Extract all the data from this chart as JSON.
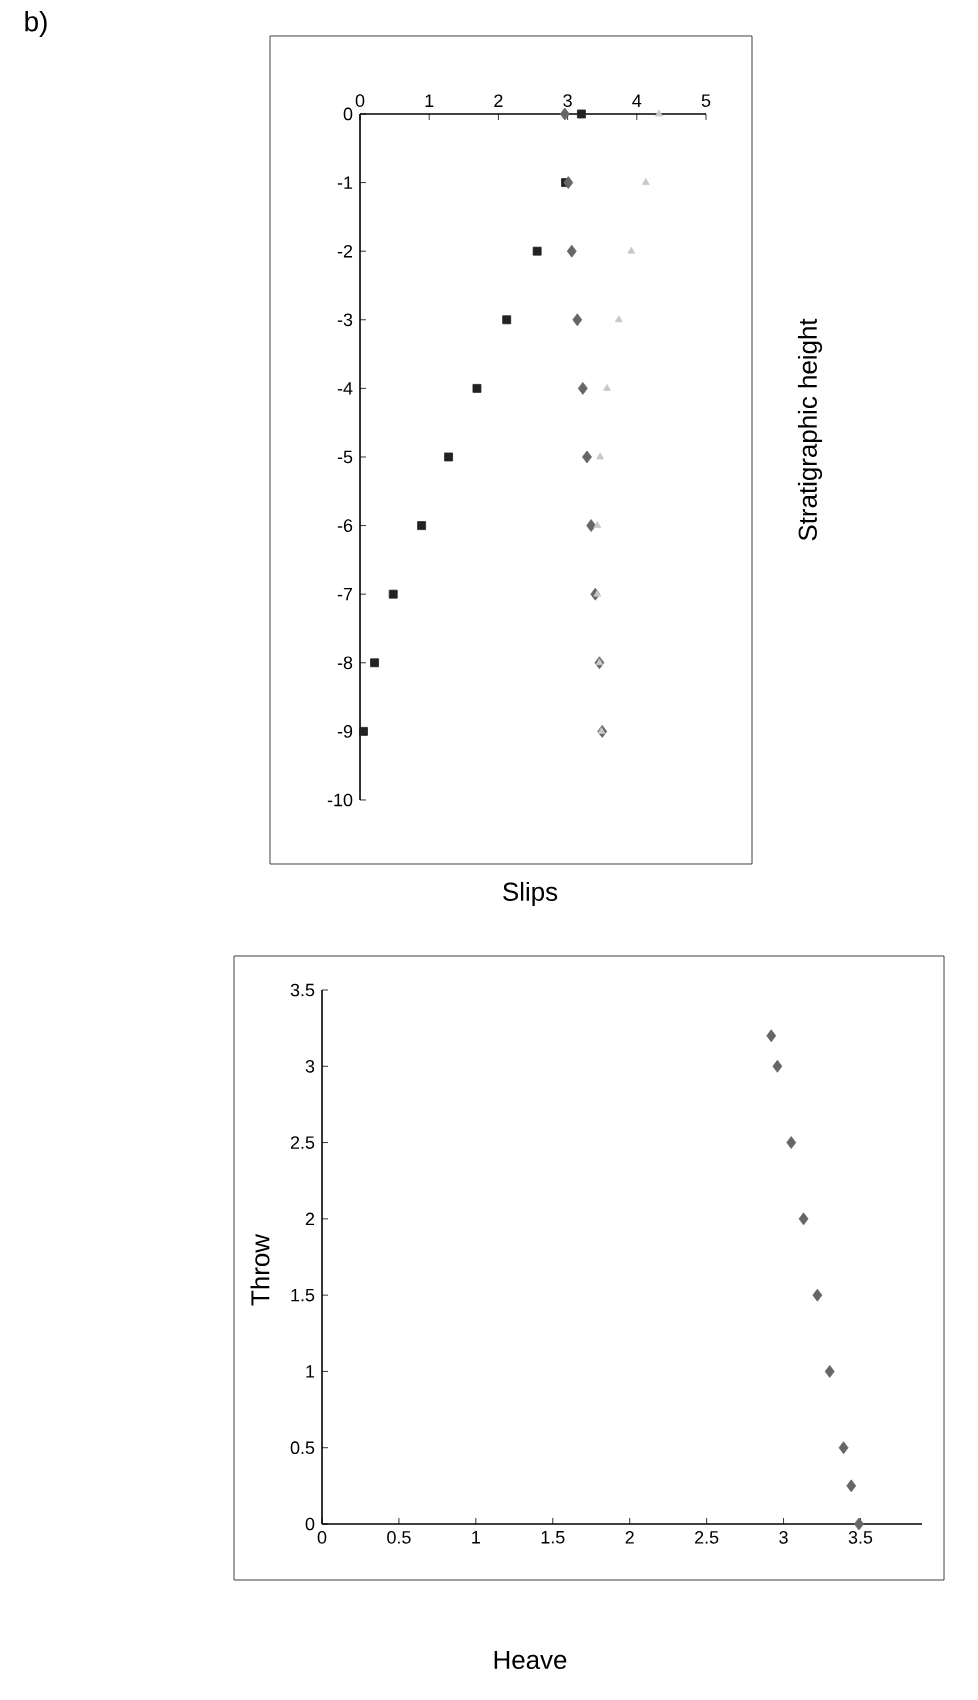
{
  "chart_data": [
    {
      "type": "scatter",
      "xlabel": "Slips",
      "ylabel": "Stratigraphic height",
      "annotations": [
        "b)"
      ],
      "xlim": [
        0,
        5
      ],
      "ylim": [
        -10,
        0
      ],
      "xticks": [
        0,
        1,
        2,
        3,
        4,
        5
      ],
      "yticks": [
        -10,
        -9,
        -8,
        -7,
        -6,
        -5,
        -4,
        -3,
        -2,
        -1,
        0
      ],
      "series": [
        {
          "color": "#222222",
          "marker": "square",
          "x": [
            3.2,
            2.97,
            2.56,
            2.12,
            1.69,
            1.28,
            0.89,
            0.48,
            0.21,
            0.05
          ],
          "values": [
            0,
            -1,
            -2,
            -3,
            -4,
            -5,
            -6,
            -7,
            -8,
            -9
          ]
        },
        {
          "color": "#666666",
          "marker": "diamond",
          "x": [
            2.96,
            3.01,
            3.06,
            3.14,
            3.22,
            3.28,
            3.34,
            3.4,
            3.46,
            3.5
          ],
          "values": [
            0,
            -1,
            -2,
            -3,
            -4,
            -5,
            -6,
            -7,
            -8,
            -9
          ]
        },
        {
          "color": "#c8c8c8",
          "marker": "triangle",
          "x": [
            4.32,
            4.13,
            3.92,
            3.74,
            3.57,
            3.47,
            3.43,
            3.43,
            3.46,
            3.49
          ],
          "values": [
            0,
            -1,
            -2,
            -3,
            -4,
            -5,
            -6,
            -7,
            -8,
            -9
          ]
        }
      ]
    },
    {
      "type": "scatter",
      "xlabel": "Heave",
      "ylabel": "Throw",
      "xlim": [
        0,
        3.9
      ],
      "ylim": [
        0,
        3.5
      ],
      "xticks": [
        0,
        0.5,
        1,
        1.5,
        2,
        2.5,
        3,
        3.5
      ],
      "yticks": [
        0,
        0.5,
        1,
        1.5,
        2,
        2.5,
        3,
        3.5
      ],
      "series": [
        {
          "color": "#666666",
          "marker": "diamond",
          "x": [
            2.92,
            2.96,
            3.05,
            3.13,
            3.22,
            3.3,
            3.39,
            3.44,
            3.49
          ],
          "values": [
            3.2,
            3,
            2.5,
            2,
            1.5,
            1,
            0.5,
            0.25,
            0
          ]
        }
      ]
    }
  ]
}
